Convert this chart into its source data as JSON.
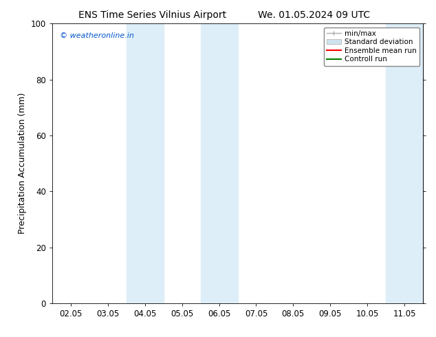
{
  "title_left": "ENS Time Series Vilnius Airport",
  "title_right": "We. 01.05.2024 09 UTC",
  "ylabel": "Precipitation Accumulation (mm)",
  "ylim": [
    0,
    100
  ],
  "yticks": [
    0,
    20,
    40,
    60,
    80,
    100
  ],
  "x_tick_labels": [
    "02.05",
    "03.05",
    "04.05",
    "05.05",
    "06.05",
    "07.05",
    "08.05",
    "09.05",
    "10.05",
    "11.05"
  ],
  "x_tick_positions": [
    0,
    1,
    2,
    3,
    4,
    5,
    6,
    7,
    8,
    9
  ],
  "xlim": [
    -0.5,
    9.5
  ],
  "shaded_bands": [
    {
      "x_start": 1.5,
      "x_end": 2.5,
      "color": "#ddeef8"
    },
    {
      "x_start": 3.5,
      "x_end": 4.5,
      "color": "#ddeef8"
    },
    {
      "x_start": 8.5,
      "x_end": 9.5,
      "color": "#ddeef8"
    }
  ],
  "watermark_text": "© weatheronline.in",
  "watermark_color": "#0055cc",
  "legend_labels": [
    "min/max",
    "Standard deviation",
    "Ensemble mean run",
    "Controll run"
  ],
  "legend_colors_line": [
    "#aaaaaa",
    "#cccccc",
    "#ff0000",
    "#008000"
  ],
  "bg_color": "#ffffff",
  "title_fontsize": 10,
  "axis_fontsize": 9,
  "tick_fontsize": 8.5
}
